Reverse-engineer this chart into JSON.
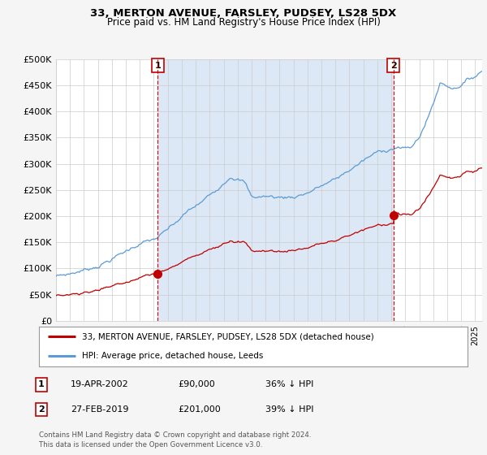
{
  "title": "33, MERTON AVENUE, FARSLEY, PUDSEY, LS28 5DX",
  "subtitle": "Price paid vs. HM Land Registry's House Price Index (HPI)",
  "ylim": [
    0,
    500000
  ],
  "yticks": [
    0,
    50000,
    100000,
    150000,
    200000,
    250000,
    300000,
    350000,
    400000,
    450000,
    500000
  ],
  "ytick_labels": [
    "£0",
    "£50K",
    "£100K",
    "£150K",
    "£200K",
    "£250K",
    "£300K",
    "£350K",
    "£400K",
    "£450K",
    "£500K"
  ],
  "hpi_color": "#5b9bd5",
  "price_color": "#c00000",
  "fill_color": "#dce8f5",
  "marker1_x": 2002.29,
  "marker1_y": 90000,
  "marker2_x": 2019.15,
  "marker2_y": 201000,
  "legend_label_price": "33, MERTON AVENUE, FARSLEY, PUDSEY, LS28 5DX (detached house)",
  "legend_label_hpi": "HPI: Average price, detached house, Leeds",
  "footer1": "Contains HM Land Registry data © Crown copyright and database right 2024.",
  "footer2": "This data is licensed under the Open Government Licence v3.0.",
  "table_rows": [
    {
      "num": "1",
      "date": "19-APR-2002",
      "price": "£90,000",
      "pct": "36% ↓ HPI"
    },
    {
      "num": "2",
      "date": "27-FEB-2019",
      "price": "£201,000",
      "pct": "39% ↓ HPI"
    }
  ],
  "background_color": "#f5f5f5",
  "plot_bg_color": "#ffffff",
  "xlim_start": 1995,
  "xlim_end": 2025.5
}
